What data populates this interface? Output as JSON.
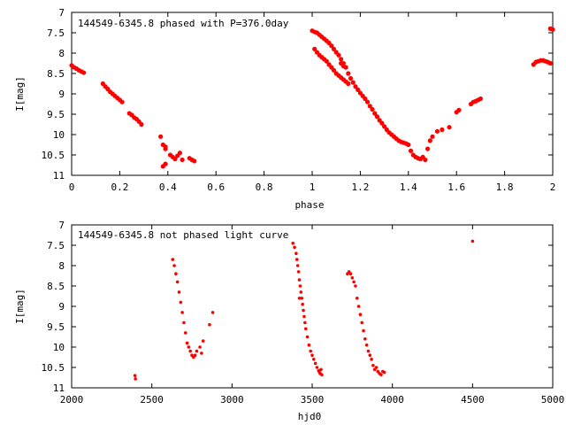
{
  "chart_data": [
    {
      "type": "scatter",
      "title": "144549-6345.8 phased with P=376.0day",
      "xlabel": "phase",
      "ylabel": "I[mag]",
      "xlim": [
        0,
        2
      ],
      "ylim": [
        11,
        7
      ],
      "y_inverted": true,
      "x_ticks": [
        "0",
        "0.2",
        "0.4",
        "0.6",
        "0.8",
        "1",
        "1.2",
        "1.4",
        "1.6",
        "1.8",
        "2"
      ],
      "y_ticks": [
        "7",
        "7.5",
        "8",
        "8.5",
        "9",
        "9.5",
        "10",
        "10.5",
        "11"
      ],
      "marker_color": "#ff0000",
      "series": [
        {
          "x": [
            0.0,
            0.01,
            0.02,
            0.03,
            0.04,
            0.05,
            0.13,
            0.14,
            0.15,
            0.16,
            0.17,
            0.18,
            0.19,
            0.2,
            0.21,
            0.24,
            0.25,
            0.26,
            0.27,
            0.28,
            0.29,
            0.37,
            0.38,
            0.39,
            0.39,
            0.41,
            0.42,
            0.43,
            0.44,
            0.45,
            0.46,
            0.49,
            0.5,
            0.51,
            0.38,
            0.39,
            1.0,
            1.01,
            1.02,
            1.03,
            1.04,
            1.05,
            1.06,
            1.07,
            1.08,
            1.09,
            1.1,
            1.11,
            1.12,
            1.13,
            1.14,
            1.15,
            1.16,
            1.17,
            1.18,
            1.19,
            1.2,
            1.21,
            1.22,
            1.23,
            1.24,
            1.25,
            1.26,
            1.27,
            1.28,
            1.29,
            1.3,
            1.31,
            1.32,
            1.33,
            1.34,
            1.35,
            1.36,
            1.37,
            1.38,
            1.39,
            1.4,
            1.41,
            1.42,
            1.43,
            1.44,
            1.45,
            1.46,
            1.47,
            1.48,
            1.49,
            1.5,
            1.52,
            1.54,
            1.57,
            1.6,
            1.61,
            1.66,
            1.67,
            1.68,
            1.69,
            1.7,
            1.01,
            1.02,
            1.03,
            1.04,
            1.05,
            1.06,
            1.07,
            1.08,
            1.09,
            1.1,
            1.11,
            1.12,
            1.13,
            1.14,
            1.15,
            1.12,
            1.13,
            1.92,
            1.93,
            1.94,
            1.95,
            1.96,
            1.97,
            1.98,
            1.99,
            2.0,
            1.99
          ],
          "y": [
            8.3,
            8.35,
            8.38,
            8.42,
            8.45,
            8.48,
            8.75,
            8.82,
            8.88,
            8.95,
            9.0,
            9.05,
            9.1,
            9.15,
            9.2,
            9.48,
            9.52,
            9.58,
            9.62,
            9.68,
            9.75,
            10.05,
            10.25,
            10.35,
            10.3,
            10.5,
            10.55,
            10.6,
            10.52,
            10.45,
            10.62,
            10.58,
            10.62,
            10.65,
            10.78,
            10.72,
            7.45,
            7.48,
            7.5,
            7.55,
            7.6,
            7.65,
            7.7,
            7.75,
            7.82,
            7.9,
            7.98,
            8.05,
            8.15,
            8.25,
            8.35,
            8.5,
            8.62,
            8.72,
            8.82,
            8.9,
            8.98,
            9.05,
            9.12,
            9.2,
            9.3,
            9.38,
            9.48,
            9.56,
            9.65,
            9.72,
            9.8,
            9.88,
            9.95,
            10.0,
            10.05,
            10.1,
            10.15,
            10.18,
            10.2,
            10.22,
            10.25,
            10.4,
            10.5,
            10.55,
            10.58,
            10.6,
            10.55,
            10.62,
            10.35,
            10.15,
            10.05,
            9.92,
            9.88,
            9.82,
            9.45,
            9.4,
            9.25,
            9.2,
            9.18,
            9.15,
            9.12,
            7.9,
            7.98,
            8.05,
            8.1,
            8.15,
            8.2,
            8.28,
            8.35,
            8.42,
            8.5,
            8.55,
            8.6,
            8.65,
            8.7,
            8.75,
            8.25,
            8.32,
            8.28,
            8.22,
            8.2,
            8.18,
            8.18,
            8.2,
            8.22,
            8.25,
            7.42,
            7.4
          ]
        }
      ]
    },
    {
      "type": "scatter",
      "title": "144549-6345.8 not phased light curve",
      "xlabel": "hjd0",
      "ylabel": "I[mag]",
      "xlim": [
        2000,
        5000
      ],
      "ylim": [
        11,
        7
      ],
      "y_inverted": true,
      "x_ticks": [
        "2000",
        "2500",
        "3000",
        "3500",
        "4000",
        "4500",
        "5000"
      ],
      "y_ticks": [
        "7",
        "7.5",
        "8",
        "8.5",
        "9",
        "9.5",
        "10",
        "10.5",
        "11"
      ],
      "marker_color": "#ff0000",
      "series": [
        {
          "x": [
            2395,
            2398,
            2630,
            2640,
            2650,
            2660,
            2670,
            2680,
            2690,
            2700,
            2710,
            2720,
            2730,
            2740,
            2750,
            2760,
            2770,
            2780,
            2800,
            2810,
            2820,
            2860,
            2880,
            3380,
            3390,
            3400,
            3405,
            3410,
            3415,
            3420,
            3425,
            3430,
            3435,
            3440,
            3445,
            3450,
            3455,
            3460,
            3470,
            3480,
            3490,
            3500,
            3510,
            3520,
            3530,
            3540,
            3545,
            3550,
            3555,
            3560,
            3420,
            3720,
            3730,
            3740,
            3750,
            3760,
            3770,
            3780,
            3790,
            3800,
            3810,
            3820,
            3830,
            3840,
            3850,
            3860,
            3870,
            3880,
            3890,
            3900,
            3910,
            3920,
            3930,
            3940,
            3950,
            4500
          ],
          "y": [
            10.7,
            10.78,
            7.85,
            8.0,
            8.2,
            8.4,
            8.65,
            8.9,
            9.15,
            9.4,
            9.65,
            9.9,
            10.0,
            10.1,
            10.2,
            10.25,
            10.2,
            10.1,
            10.0,
            10.15,
            9.85,
            9.45,
            9.15,
            7.45,
            7.55,
            7.7,
            7.85,
            8.0,
            8.15,
            8.35,
            8.5,
            8.65,
            8.8,
            8.95,
            9.1,
            9.25,
            9.4,
            9.55,
            9.75,
            9.95,
            10.1,
            10.2,
            10.3,
            10.4,
            10.5,
            10.58,
            10.62,
            10.65,
            10.55,
            10.68,
            8.8,
            8.2,
            8.15,
            8.2,
            8.3,
            8.4,
            8.5,
            8.8,
            9.0,
            9.2,
            9.4,
            9.6,
            9.8,
            9.95,
            10.1,
            10.2,
            10.3,
            10.45,
            10.55,
            10.5,
            10.6,
            10.65,
            10.68,
            10.6,
            10.62,
            7.4
          ]
        }
      ]
    }
  ]
}
